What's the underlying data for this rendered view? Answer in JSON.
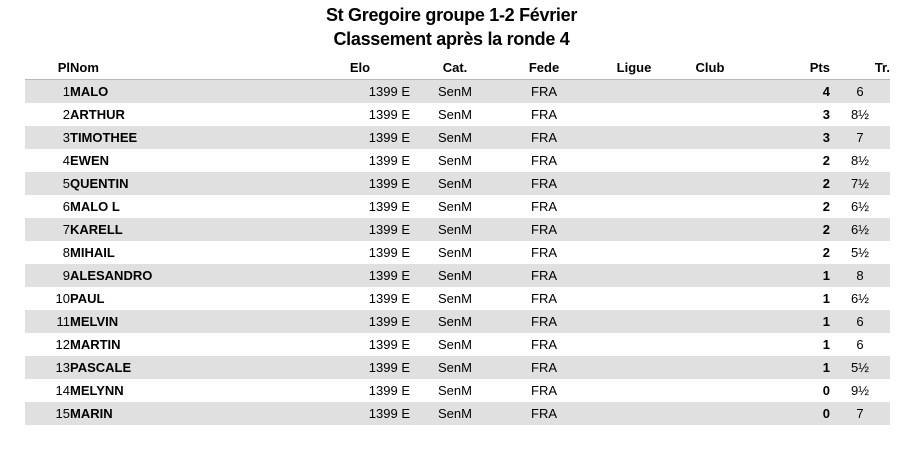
{
  "title": {
    "line1": "St Gregoire groupe 1-2 Février",
    "line2": "Classement après la ronde 4"
  },
  "table": {
    "columns": [
      {
        "key": "pl",
        "label": "Pl"
      },
      {
        "key": "nom",
        "label": "Nom"
      },
      {
        "key": "elo",
        "label": "Elo"
      },
      {
        "key": "cat",
        "label": "Cat."
      },
      {
        "key": "fede",
        "label": "Fede"
      },
      {
        "key": "ligue",
        "label": "Ligue"
      },
      {
        "key": "club",
        "label": "Club"
      },
      {
        "key": "pts",
        "label": "Pts"
      },
      {
        "key": "tr",
        "label": "Tr."
      }
    ],
    "rows": [
      {
        "pl": "1",
        "nom": "MALO",
        "elo": "1399 E",
        "cat": "SenM",
        "fede": "FRA",
        "ligue": "",
        "club": "",
        "pts": "4",
        "tr": "6"
      },
      {
        "pl": "2",
        "nom": "ARTHUR",
        "elo": "1399 E",
        "cat": "SenM",
        "fede": "FRA",
        "ligue": "",
        "club": "",
        "pts": "3",
        "tr": "8½"
      },
      {
        "pl": "3",
        "nom": "TIMOTHEE",
        "elo": "1399 E",
        "cat": "SenM",
        "fede": "FRA",
        "ligue": "",
        "club": "",
        "pts": "3",
        "tr": "7"
      },
      {
        "pl": "4",
        "nom": "EWEN",
        "elo": "1399 E",
        "cat": "SenM",
        "fede": "FRA",
        "ligue": "",
        "club": "",
        "pts": "2",
        "tr": "8½"
      },
      {
        "pl": "5",
        "nom": "QUENTIN",
        "elo": "1399 E",
        "cat": "SenM",
        "fede": "FRA",
        "ligue": "",
        "club": "",
        "pts": "2",
        "tr": "7½"
      },
      {
        "pl": "6",
        "nom": "MALO L",
        "elo": "1399 E",
        "cat": "SenM",
        "fede": "FRA",
        "ligue": "",
        "club": "",
        "pts": "2",
        "tr": "6½"
      },
      {
        "pl": "7",
        "nom": "KARELL",
        "elo": "1399 E",
        "cat": "SenM",
        "fede": "FRA",
        "ligue": "",
        "club": "",
        "pts": "2",
        "tr": "6½"
      },
      {
        "pl": "8",
        "nom": "MIHAIL",
        "elo": "1399 E",
        "cat": "SenM",
        "fede": "FRA",
        "ligue": "",
        "club": "",
        "pts": "2",
        "tr": "5½"
      },
      {
        "pl": "9",
        "nom": "ALESANDRO",
        "elo": "1399 E",
        "cat": "SenM",
        "fede": "FRA",
        "ligue": "",
        "club": "",
        "pts": "1",
        "tr": "8"
      },
      {
        "pl": "10",
        "nom": "PAUL",
        "elo": "1399 E",
        "cat": "SenM",
        "fede": "FRA",
        "ligue": "",
        "club": "",
        "pts": "1",
        "tr": "6½"
      },
      {
        "pl": "11",
        "nom": "MELVIN",
        "elo": "1399 E",
        "cat": "SenM",
        "fede": "FRA",
        "ligue": "",
        "club": "",
        "pts": "1",
        "tr": "6"
      },
      {
        "pl": "12",
        "nom": "MARTIN",
        "elo": "1399 E",
        "cat": "SenM",
        "fede": "FRA",
        "ligue": "",
        "club": "",
        "pts": "1",
        "tr": "6"
      },
      {
        "pl": "13",
        "nom": "PASCALE",
        "elo": "1399 E",
        "cat": "SenM",
        "fede": "FRA",
        "ligue": "",
        "club": "",
        "pts": "1",
        "tr": "5½"
      },
      {
        "pl": "14",
        "nom": "MELYNN",
        "elo": "1399 E",
        "cat": "SenM",
        "fede": "FRA",
        "ligue": "",
        "club": "",
        "pts": "0",
        "tr": "9½"
      },
      {
        "pl": "15",
        "nom": "MARIN",
        "elo": "1399 E",
        "cat": "SenM",
        "fede": "FRA",
        "ligue": "",
        "club": "",
        "pts": "0",
        "tr": "7"
      }
    ]
  },
  "colors": {
    "row_shade": "#e0e0e0",
    "header_border": "#b8b8b8",
    "text": "#000000",
    "background": "#ffffff"
  }
}
